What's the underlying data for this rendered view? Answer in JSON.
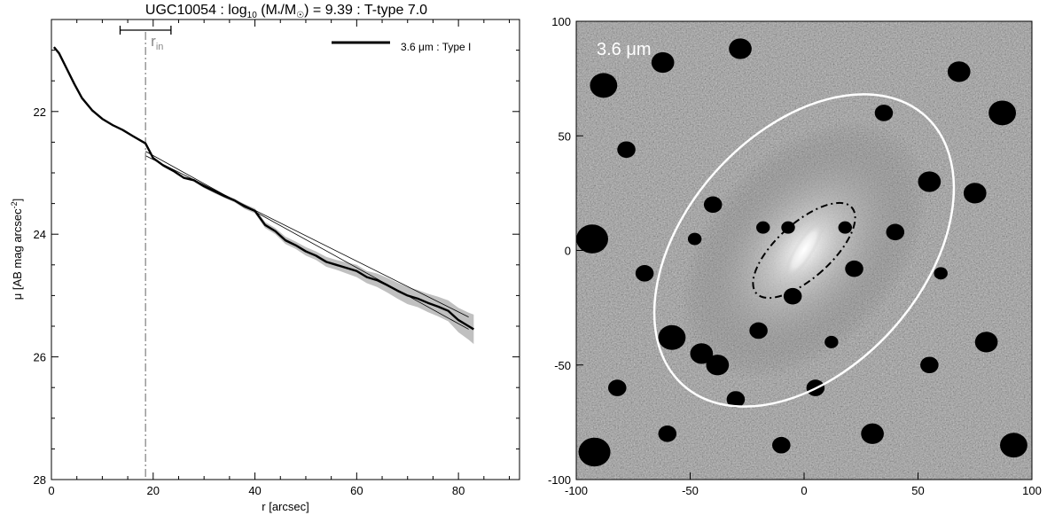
{
  "chart_data": [
    {
      "type": "line",
      "title_prefix": "UGC10054 : log",
      "title_sub": "10",
      "title_mass": " (M",
      "title_star": "*",
      "title_slash": "/M",
      "title_sun": "☉",
      "title_rest": ") = 9.39 : T-type 7.0",
      "xlabel": "r [arcsec]",
      "ylabel_main": "μ [AB mag arcsec",
      "ylabel_sup": "-2",
      "ylabel_close": "]",
      "xlim": [
        0,
        92
      ],
      "ylim": [
        28,
        20.5
      ],
      "x_ticks": [
        0,
        20,
        40,
        60,
        80
      ],
      "x_tick_labels": [
        "0",
        "20",
        "40",
        "60",
        "80"
      ],
      "y_ticks": [
        22,
        24,
        26,
        28
      ],
      "y_tick_labels": [
        "22",
        "24",
        "26",
        "28"
      ],
      "legend": {
        "label": "3.6 μm : Type I",
        "position": "top-right"
      },
      "r_in": {
        "label_main": "r",
        "label_sub": "in",
        "value": 18.5,
        "err_low": 13.5,
        "err_high": 23.5
      },
      "series": [
        {
          "name": "3.6 μm : Type I",
          "color": "#000000",
          "x": [
            0.5,
            1.5,
            3,
            4.5,
            6,
            8,
            10,
            12,
            14,
            16,
            18.5,
            20,
            22,
            24,
            26,
            28,
            30,
            32,
            34,
            36,
            38,
            40,
            42,
            44,
            46,
            48,
            50,
            52,
            54,
            56,
            58,
            60,
            62,
            64,
            66,
            68,
            70,
            72,
            74,
            76,
            78,
            80,
            82,
            83
          ],
          "y": [
            20.95,
            21.05,
            21.3,
            21.55,
            21.78,
            21.98,
            22.12,
            22.22,
            22.3,
            22.4,
            22.52,
            22.76,
            22.88,
            22.97,
            23.08,
            23.12,
            23.22,
            23.3,
            23.38,
            23.45,
            23.55,
            23.62,
            23.85,
            23.95,
            24.1,
            24.18,
            24.28,
            24.35,
            24.45,
            24.5,
            24.55,
            24.6,
            24.7,
            24.75,
            24.83,
            24.92,
            25.0,
            25.05,
            25.12,
            25.18,
            25.25,
            25.4,
            25.5,
            25.55
          ],
          "uncertainty": [
            0.01,
            0.01,
            0.01,
            0.01,
            0.01,
            0.01,
            0.01,
            0.01,
            0.01,
            0.01,
            0.02,
            0.02,
            0.02,
            0.02,
            0.02,
            0.02,
            0.03,
            0.03,
            0.03,
            0.03,
            0.04,
            0.04,
            0.05,
            0.05,
            0.06,
            0.06,
            0.07,
            0.07,
            0.08,
            0.08,
            0.09,
            0.1,
            0.1,
            0.11,
            0.12,
            0.13,
            0.14,
            0.14,
            0.15,
            0.16,
            0.17,
            0.2,
            0.22,
            0.24
          ]
        }
      ],
      "fits": [
        {
          "x": [
            18.5,
            82
          ],
          "y": [
            22.65,
            25.55
          ]
        },
        {
          "x": [
            18.5,
            82
          ],
          "y": [
            22.72,
            25.35
          ]
        }
      ],
      "colors": {
        "uncertainty_band": "#c0c0c0",
        "rin_line": "#888888",
        "fit": "#000000"
      }
    },
    {
      "type": "image",
      "label": "3.6 μm",
      "xlim": [
        -100,
        100
      ],
      "ylim": [
        -100,
        100
      ],
      "x_ticks": [
        -100,
        -50,
        0,
        50,
        100
      ],
      "x_tick_labels": [
        "-100",
        "-50",
        "0",
        "50",
        "100"
      ],
      "y_ticks": [
        -100,
        -50,
        0,
        50,
        100
      ],
      "y_tick_labels": [
        "-100",
        "-50",
        "0",
        "50",
        "100"
      ],
      "outer_ellipse": {
        "cx": 0,
        "cy": 0,
        "semi_major": 79,
        "semi_minor": 52,
        "tilt_deg": 42,
        "style": "solid",
        "color": "#ffffff"
      },
      "inner_ellipse": {
        "cx": 0,
        "cy": 0,
        "semi_major": 28,
        "semi_minor": 12,
        "tilt_deg": 48,
        "style": "dash-dot",
        "color": "#000000"
      }
    }
  ]
}
